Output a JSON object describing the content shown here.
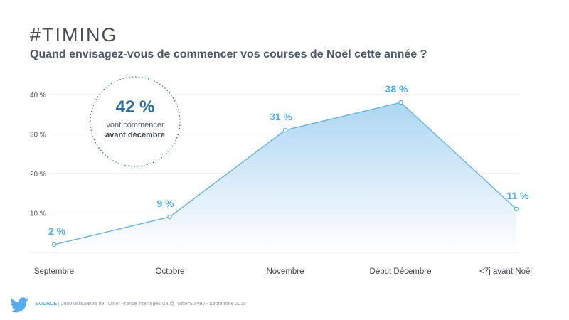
{
  "header": {
    "title": "#TIMING",
    "subtitle": "Quand envisagez-vous de commencer vos courses de Noël cette année ?"
  },
  "callout": {
    "value": "42 %",
    "line1": "vont commencer",
    "line2": "avant décembre"
  },
  "footer": {
    "source_label": "SOURCE",
    "source_text": " | 2000 utilisateurs de Twitter France interrogés via @TwitterSurvey - Septembre 2015"
  },
  "colors": {
    "line": "#6ab4de",
    "label": "#55acee",
    "callout_value": "#2c6f9e",
    "grid": "#e3e6e9",
    "axis_text": "#555d66"
  },
  "chart_data": {
    "type": "area",
    "categories": [
      "Septembre",
      "Octobre",
      "Novembre",
      "Début Décembre",
      "<7j avant Noël"
    ],
    "values": [
      2,
      9,
      31,
      38,
      11
    ],
    "data_labels": [
      "2 %",
      "9 %",
      "31 %",
      "38 %",
      "11 %"
    ],
    "y_ticks": [
      10,
      20,
      30,
      40
    ],
    "y_tick_labels": [
      "10 %",
      "20 %",
      "30 %",
      "40 %"
    ],
    "ylim": [
      0,
      40
    ],
    "grid": true
  }
}
